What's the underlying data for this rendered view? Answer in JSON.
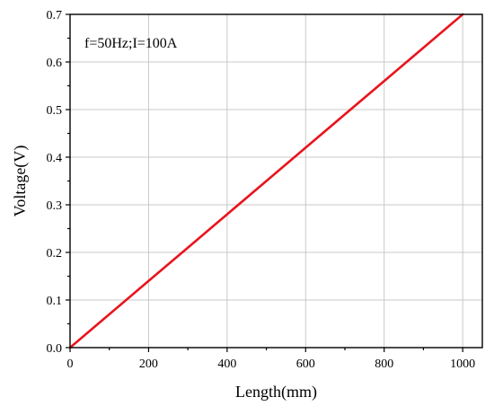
{
  "chart_data": {
    "type": "line",
    "title": "",
    "annotation": "f=50Hz;I=100A",
    "xlabel": "Length(mm)",
    "ylabel": "Voltage(V)",
    "xlim": [
      0,
      1050
    ],
    "ylim": [
      0,
      0.7
    ],
    "x_ticks": [
      0,
      200,
      400,
      600,
      800,
      1000
    ],
    "x_tick_labels": [
      "0",
      "200",
      "400",
      "600",
      "800",
      "1000"
    ],
    "y_ticks": [
      0,
      0.1,
      0.2,
      0.3,
      0.4,
      0.5,
      0.6,
      0.7
    ],
    "y_tick_labels": [
      "0.0",
      "0.1",
      "0.2",
      "0.3",
      "0.4",
      "0.5",
      "0.6",
      "0.7"
    ],
    "grid": true,
    "series": [
      {
        "color": "#e8141c",
        "x": [
          0,
          100,
          200,
          300,
          400,
          500,
          600,
          700,
          800,
          900,
          1000
        ],
        "y": [
          0,
          0.07,
          0.14,
          0.21,
          0.28,
          0.35,
          0.42,
          0.49,
          0.56,
          0.63,
          0.7
        ]
      }
    ]
  }
}
